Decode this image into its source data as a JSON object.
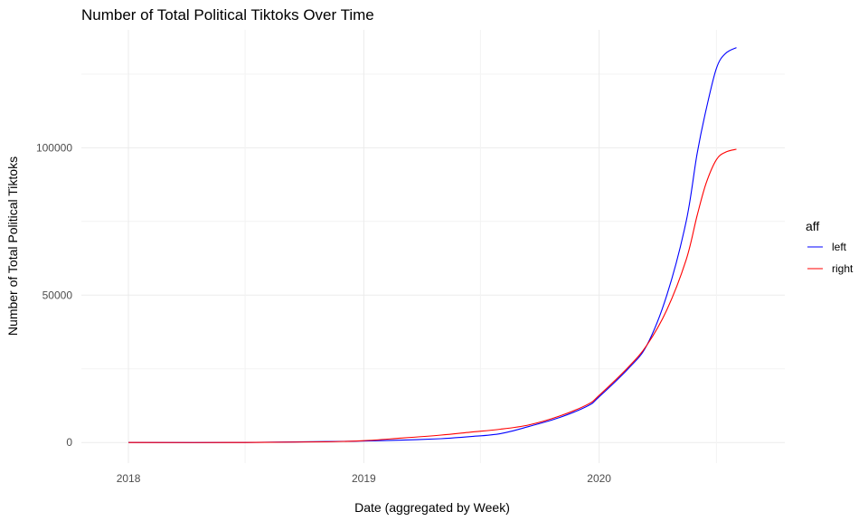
{
  "chart_data": {
    "type": "line",
    "title": "Number of Total Political Tiktoks Over Time",
    "xlabel": "Date (aggregated by Week)",
    "ylabel": "Number of Total Political Tiktoks",
    "x_ticks": [
      "2018",
      "2019",
      "2020"
    ],
    "y_ticks": [
      "0",
      "50000",
      "100000"
    ],
    "xlim": [
      "2017-10-20",
      "2020-10-15"
    ],
    "ylim": [
      -7000,
      140000
    ],
    "grid": true,
    "legend": {
      "title": "aff",
      "position": "right"
    },
    "x": [
      "2018-01-01",
      "2018-07-01",
      "2018-11-01",
      "2019-01-01",
      "2019-03-01",
      "2019-05-01",
      "2019-06-15",
      "2019-08-01",
      "2019-09-15",
      "2019-11-01",
      "2019-12-15",
      "2020-01-01",
      "2020-02-15",
      "2020-03-15",
      "2020-04-15",
      "2020-05-15",
      "2020-06-01",
      "2020-06-15",
      "2020-07-01",
      "2020-07-15",
      "2020-08-01"
    ],
    "series": [
      {
        "name": "left",
        "color": "#0000ff",
        "values": [
          0,
          0,
          300,
          500,
          800,
          1300,
          2000,
          3000,
          5500,
          8500,
          12500,
          15500,
          25000,
          33000,
          50000,
          75000,
          98000,
          113000,
          127000,
          132000,
          134000
        ]
      },
      {
        "name": "right",
        "color": "#ff0000",
        "values": [
          0,
          0,
          200,
          600,
          1500,
          2500,
          3500,
          4500,
          6000,
          9000,
          13000,
          16000,
          25500,
          33000,
          45000,
          62000,
          77000,
          88000,
          96000,
          98500,
          99500
        ]
      }
    ]
  }
}
